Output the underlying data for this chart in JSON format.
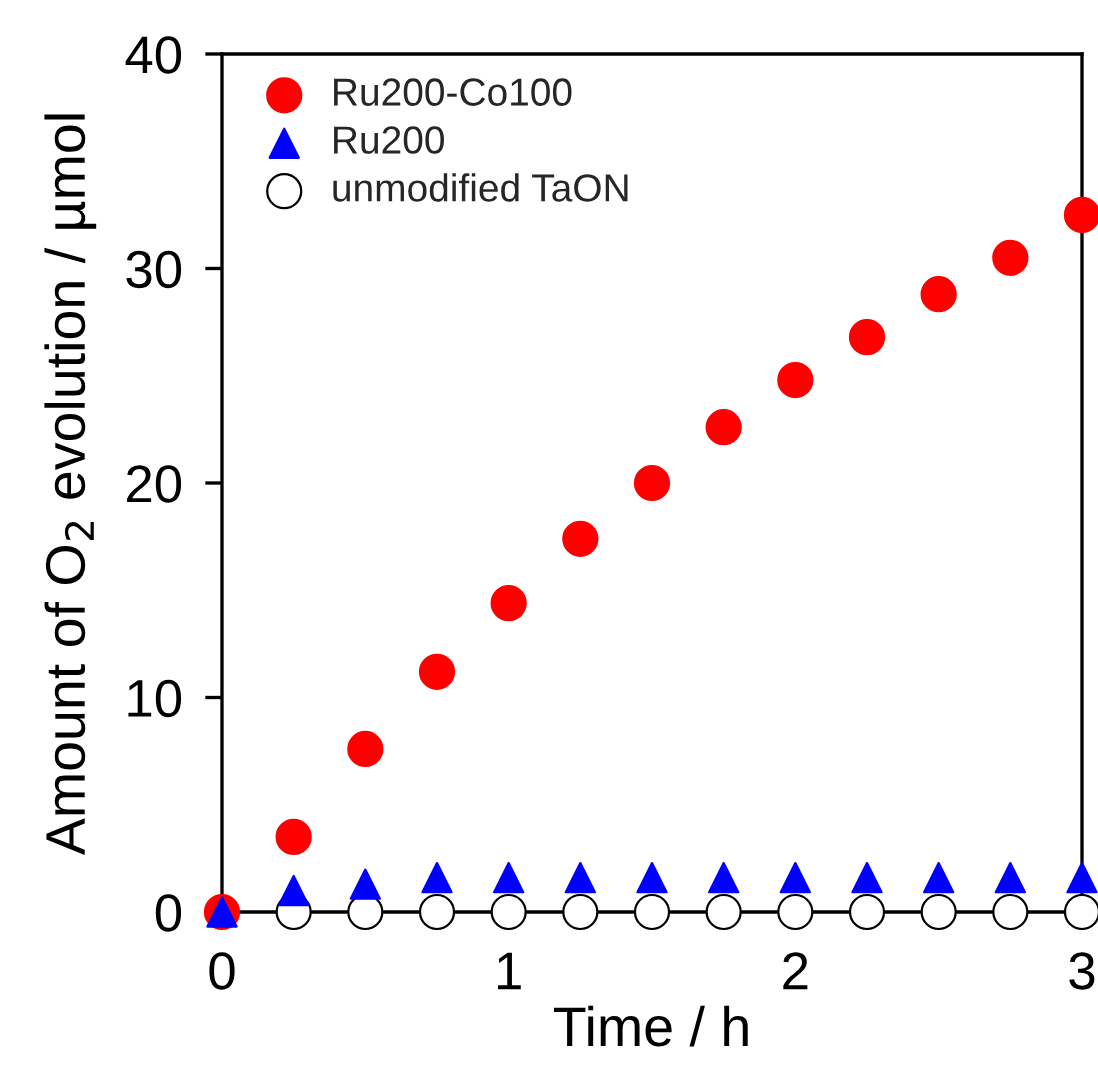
{
  "chart_data": {
    "type": "scatter",
    "xlabel": "Time / h",
    "ylabel": "Amount of O$_{2}$ evolution / µmol",
    "xlim": [
      0,
      3
    ],
    "ylim": [
      0,
      40
    ],
    "xticks": [
      0,
      1,
      2,
      3
    ],
    "yticks": [
      0,
      10,
      20,
      30,
      40
    ],
    "grid": false,
    "legend": "top left",
    "series": [
      {
        "name": "Ru200-Co100",
        "color": "#ff0000",
        "marker": "circle",
        "x": [
          0,
          0.25,
          0.5,
          0.75,
          1,
          1.25,
          1.5,
          1.75,
          2,
          2.25,
          2.5,
          2.75,
          3
        ],
        "values": [
          0,
          3.5,
          7.6,
          11.2,
          14.4,
          17.4,
          20.0,
          22.6,
          24.8,
          26.8,
          28.8,
          30.5,
          32.5
        ]
      },
      {
        "name": "Ru200",
        "color": "#0000ff",
        "marker": "triangle",
        "x": [
          0,
          0.25,
          0.5,
          0.75,
          1,
          1.25,
          1.5,
          1.75,
          2,
          2.25,
          2.5,
          2.75,
          3
        ],
        "values": [
          0,
          1.0,
          1.3,
          1.6,
          1.6,
          1.6,
          1.6,
          1.6,
          1.6,
          1.6,
          1.6,
          1.6,
          1.6
        ]
      },
      {
        "name": "unmodified TaON",
        "color": "#ffffff",
        "marker": "circle",
        "x": [
          0.25,
          0.5,
          0.75,
          1,
          1.25,
          1.5,
          1.75,
          2,
          2.25,
          2.5,
          2.75,
          3
        ],
        "values": [
          0,
          0,
          0,
          0,
          0,
          0,
          0,
          0,
          0,
          0,
          0,
          0
        ]
      }
    ]
  }
}
